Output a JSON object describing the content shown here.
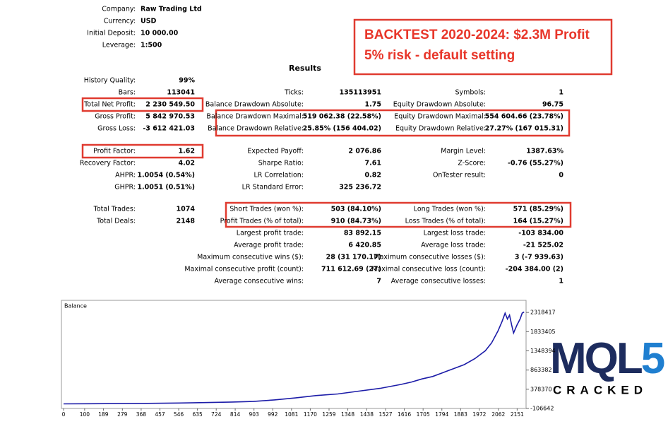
{
  "header": {
    "rows": [
      {
        "label": "Company:",
        "value": "Raw Trading Ltd"
      },
      {
        "label": "Currency:",
        "value": "USD"
      },
      {
        "label": "Initial Deposit:",
        "value": "10 000.00"
      },
      {
        "label": "Leverage:",
        "value": "1:500"
      }
    ]
  },
  "banner": {
    "lines": [
      "BACKTEST 2020-2024: $2.3M Profit",
      "5% risk - default setting"
    ]
  },
  "results": {
    "title": "Results",
    "rows": [
      [
        {
          "label": "History Quality:",
          "value": "99%"
        },
        null,
        null
      ],
      [
        {
          "label": "Bars:",
          "value": "113041"
        },
        {
          "label": "Ticks:",
          "value": "135113951"
        },
        {
          "label": "Symbols:",
          "value": "1"
        }
      ],
      [
        {
          "label": "Total Net Profit:",
          "value": "2 230 549.50"
        },
        {
          "label": "Balance Drawdown Absolute:",
          "value": "1.75"
        },
        {
          "label": "Equity Drawdown Absolute:",
          "value": "96.75"
        }
      ],
      [
        {
          "label": "Gross Profit:",
          "value": "5 842 970.53"
        },
        {
          "label": "Balance Drawdown Maximal:",
          "value": "519 062.38 (22.58%)"
        },
        {
          "label": "Equity Drawdown Maximal:",
          "value": "554 604.66 (23.78%)"
        }
      ],
      [
        {
          "label": "Gross Loss:",
          "value": "-3 612 421.03"
        },
        {
          "label": "Balance Drawdown Relative:",
          "value": "25.85% (156 404.02)"
        },
        {
          "label": "Equity Drawdown Relative:",
          "value": "27.27% (167 015.31)"
        }
      ],
      [
        {
          "label": "Profit Factor:",
          "value": "1.62"
        },
        {
          "label": "Expected Payoff:",
          "value": "2 076.86"
        },
        {
          "label": "Margin Level:",
          "value": "1387.63%"
        }
      ],
      [
        {
          "label": "Recovery Factor:",
          "value": "4.02"
        },
        {
          "label": "Sharpe Ratio:",
          "value": "7.61"
        },
        {
          "label": "Z-Score:",
          "value": "-0.76 (55.27%)"
        }
      ],
      [
        {
          "label": "AHPR:",
          "value": "1.0054 (0.54%)"
        },
        {
          "label": "LR Correlation:",
          "value": "0.82"
        },
        {
          "label": "OnTester result:",
          "value": "0"
        }
      ],
      [
        {
          "label": "GHPR:",
          "value": "1.0051 (0.51%)"
        },
        {
          "label": "LR Standard Error:",
          "value": "325 236.72"
        },
        null
      ],
      [
        {
          "label": "Total Trades:",
          "value": "1074"
        },
        {
          "label": "Short Trades (won %):",
          "value": "503 (84.10%)"
        },
        {
          "label": "Long Trades (won %):",
          "value": "571 (85.29%)"
        }
      ],
      [
        {
          "label": "Total Deals:",
          "value": "2148"
        },
        {
          "label": "Profit Trades (% of total):",
          "value": "910 (84.73%)"
        },
        {
          "label": "Loss Trades (% of total):",
          "value": "164 (15.27%)"
        }
      ],
      [
        null,
        {
          "label": "Largest profit trade:",
          "value": "83 892.15"
        },
        {
          "label": "Largest loss trade:",
          "value": "-103 834.00"
        }
      ],
      [
        null,
        {
          "label": "Average profit trade:",
          "value": "6 420.85"
        },
        {
          "label": "Average loss trade:",
          "value": "-21 525.02"
        }
      ],
      [
        null,
        {
          "label": "Maximum consecutive wins ($):",
          "value": "28 (31 170.17)"
        },
        {
          "label": "Maximum consecutive losses ($):",
          "value": "3 (-7 939.63)"
        }
      ],
      [
        null,
        {
          "label": "Maximal consecutive profit (count):",
          "value": "711 612.69 (27)"
        },
        {
          "label": "Maximal consecutive loss (count):",
          "value": "-204 384.00 (2)"
        }
      ],
      [
        null,
        {
          "label": "Average consecutive wins:",
          "value": "7"
        },
        {
          "label": "Average consecutive losses:",
          "value": "1"
        }
      ]
    ]
  },
  "chart_data": {
    "type": "line",
    "title": "Balance",
    "x": [
      0,
      200,
      400,
      600,
      800,
      900,
      1000,
      1100,
      1200,
      1300,
      1400,
      1500,
      1600,
      1650,
      1700,
      1750,
      1800,
      1850,
      1900,
      1950,
      2000,
      2030,
      2060,
      2080,
      2094,
      2105,
      2115,
      2125,
      2134,
      2150,
      2165,
      2175,
      2184
    ],
    "values": [
      10000,
      15000,
      22000,
      35000,
      55000,
      70000,
      110000,
      160000,
      220000,
      260000,
      330000,
      400000,
      500000,
      560000,
      640000,
      700000,
      800000,
      900000,
      1000000,
      1150000,
      1350000,
      1550000,
      1850000,
      2100000,
      2300000,
      2150000,
      2250000,
      2000000,
      1800000,
      2000000,
      2150000,
      2300000,
      2330000
    ],
    "color": "#1c1ca8",
    "xlim": [
      0,
      2200
    ],
    "ylim": [
      -106642,
      2623800
    ],
    "xticks": [
      0,
      100,
      189,
      279,
      368,
      457,
      546,
      635,
      724,
      814,
      903,
      992,
      1081,
      1170,
      1259,
      1348,
      1438,
      1527,
      1616,
      1705,
      1794,
      1883,
      1972,
      2062,
      2151
    ],
    "yticks": [
      -106642,
      378370,
      863382,
      1348394,
      1833405,
      2318417
    ]
  },
  "watermark": {
    "logo": "MQL",
    "digit": "5",
    "tagline": "CRACKED"
  }
}
